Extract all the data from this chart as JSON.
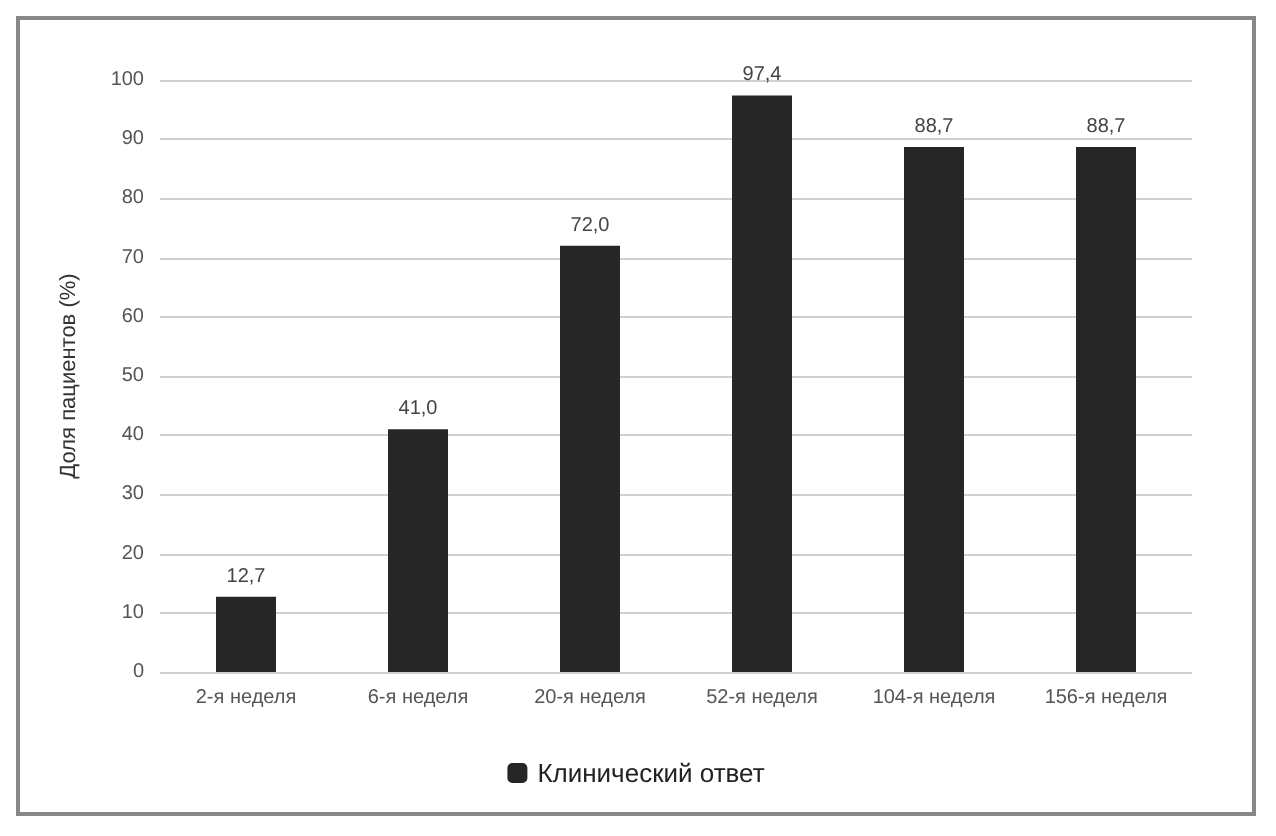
{
  "chart_data": {
    "type": "bar",
    "ylabel": "Доля пациентов (%)",
    "categories": [
      "2-я неделя",
      "6-я неделя",
      "20-я неделя",
      "52-я неделя",
      "104-я неделя",
      "156-я неделя"
    ],
    "series": [
      {
        "name": "Клинический ответ",
        "color": "#262626",
        "values": [
          12.7,
          41.0,
          72.0,
          97.4,
          88.7,
          88.7
        ],
        "value_labels": [
          "12,7",
          "41,0",
          "72,0",
          "97,4",
          "88,7",
          "88,7"
        ]
      }
    ],
    "ylim": [
      0,
      100
    ],
    "yticks": [
      0,
      10,
      20,
      30,
      40,
      50,
      60,
      70,
      80,
      90,
      100
    ],
    "grid": "y",
    "legend": "bottom"
  }
}
